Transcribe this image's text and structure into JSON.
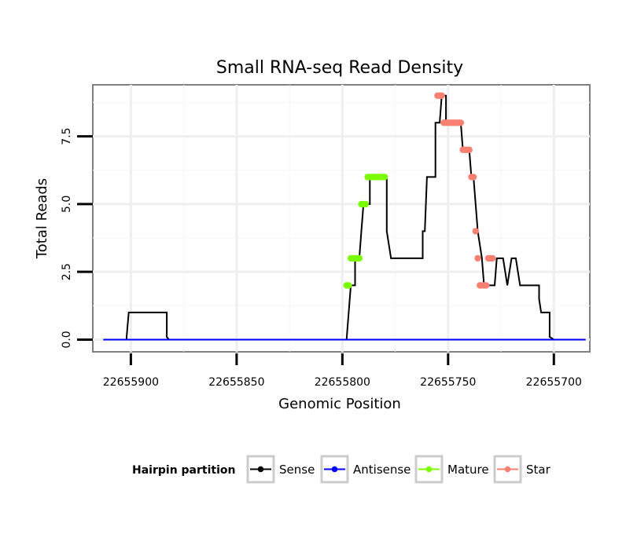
{
  "chart_data": {
    "type": "line",
    "title": "Small RNA-seq Read Density",
    "xlabel": "Genomic Position",
    "ylabel": "Total Reads",
    "x_reversed": true,
    "xlim": [
      22655918,
      22655683
    ],
    "ylim": [
      -0.45,
      9.4
    ],
    "x_ticks": [
      22655900,
      22655850,
      22655800,
      22655750,
      22655700
    ],
    "x_tick_labels": [
      "22655900",
      "22655850",
      "22655800",
      "22655750",
      "22655700"
    ],
    "y_ticks": [
      0,
      2.5,
      5,
      7.5
    ],
    "y_tick_labels": [
      "0.0",
      "2.5",
      "5.0",
      "7.5"
    ],
    "grid": true,
    "legend_position": "bottom",
    "legend": {
      "title": "Hairpin partition",
      "entries": [
        {
          "name": "Sense",
          "color": "#000000"
        },
        {
          "name": "Antisense",
          "color": "#0000ff"
        },
        {
          "name": "Mature",
          "color": "#7cfc00"
        },
        {
          "name": "Star",
          "color": "#fa8072"
        }
      ]
    },
    "series": [
      {
        "name": "Sense",
        "color": "#000000",
        "x": [
          22655913,
          22655902,
          22655902,
          22655901,
          22655883,
          22655883,
          22655882,
          22655798,
          22655797,
          22655796,
          22655796,
          22655794,
          22655794,
          22655793,
          22655792,
          22655791,
          22655790,
          22655789,
          22655789,
          22655787,
          22655787,
          22655784,
          22655784,
          22655779,
          22655779,
          22655777,
          22655776,
          22655776,
          22655774,
          22655773,
          22655763,
          22655762,
          22655762,
          22655761,
          22655760,
          22655759,
          22655758,
          22655756,
          22655756,
          22655755,
          22655754,
          22655754,
          22655753,
          22655752,
          22655751,
          22655751,
          22655750,
          22655749,
          22655749,
          22655748,
          22655747,
          22655746,
          22655745,
          22655744,
          22655743,
          22655742,
          22655741,
          22655740,
          22655739,
          22655738,
          22655738,
          22655736,
          22655734,
          22655733,
          22655733,
          22655732,
          22655731,
          22655730,
          22655728,
          22655728,
          22655727,
          22655726,
          22655725,
          22655724,
          22655724,
          22655722,
          22655722,
          22655720,
          22655718,
          22655718,
          22655716,
          22655716,
          22655714,
          22655714,
          22655707,
          22655707,
          22655706,
          22655702,
          22655702,
          22655700,
          22655700,
          22655685
        ],
        "y": [
          0,
          0,
          0.1,
          1,
          1,
          0.1,
          0,
          0,
          1,
          2,
          2,
          2,
          3,
          3,
          3,
          4,
          5,
          5,
          5,
          5,
          6,
          6,
          6,
          6,
          4,
          3,
          3,
          3,
          3,
          3,
          3,
          3,
          4,
          4,
          6,
          6,
          6,
          6,
          8,
          8,
          8,
          8,
          9,
          9,
          9,
          8,
          8,
          8,
          8,
          8,
          8,
          8,
          8,
          8,
          7,
          7,
          7,
          7,
          6,
          6,
          6,
          4,
          3,
          2,
          2,
          2,
          2,
          2,
          2,
          2,
          3,
          3,
          3,
          3,
          3,
          2,
          2,
          3,
          3,
          3,
          2,
          2,
          2,
          2,
          2,
          1.5,
          1,
          1,
          0.1,
          0,
          0,
          0
        ]
      },
      {
        "name": "Antisense",
        "color": "#0000ff",
        "x": [
          22655913,
          22655685
        ],
        "y": [
          0,
          0
        ]
      }
    ],
    "points": [
      {
        "name": "Mature",
        "color": "#7cfc00",
        "x": [
          22655798,
          22655797,
          22655796,
          22655795,
          22655794,
          22655793,
          22655792,
          22655791,
          22655790,
          22655789,
          22655788,
          22655787,
          22655786,
          22655785,
          22655784,
          22655783,
          22655782,
          22655781,
          22655780
        ],
        "y": [
          2,
          2,
          3,
          3,
          3,
          3,
          3,
          5,
          5,
          5,
          6,
          6,
          6,
          6,
          6,
          6,
          6,
          6,
          6
        ]
      },
      {
        "name": "Star",
        "color": "#fa8072",
        "x": [
          22655755,
          22655754,
          22655753,
          22655752,
          22655751,
          22655750,
          22655749,
          22655748,
          22655747,
          22655746,
          22655745,
          22655744,
          22655743,
          22655742,
          22655741,
          22655740,
          22655739,
          22655738,
          22655737,
          22655736,
          22655735,
          22655734,
          22655733,
          22655732,
          22655731,
          22655730,
          22655729
        ],
        "y": [
          9,
          9,
          9,
          8,
          8,
          8,
          8,
          8,
          8,
          8,
          8,
          8,
          7,
          7,
          7,
          7,
          6,
          6,
          4,
          3,
          2,
          2,
          2,
          2,
          3,
          3,
          3
        ]
      }
    ]
  }
}
